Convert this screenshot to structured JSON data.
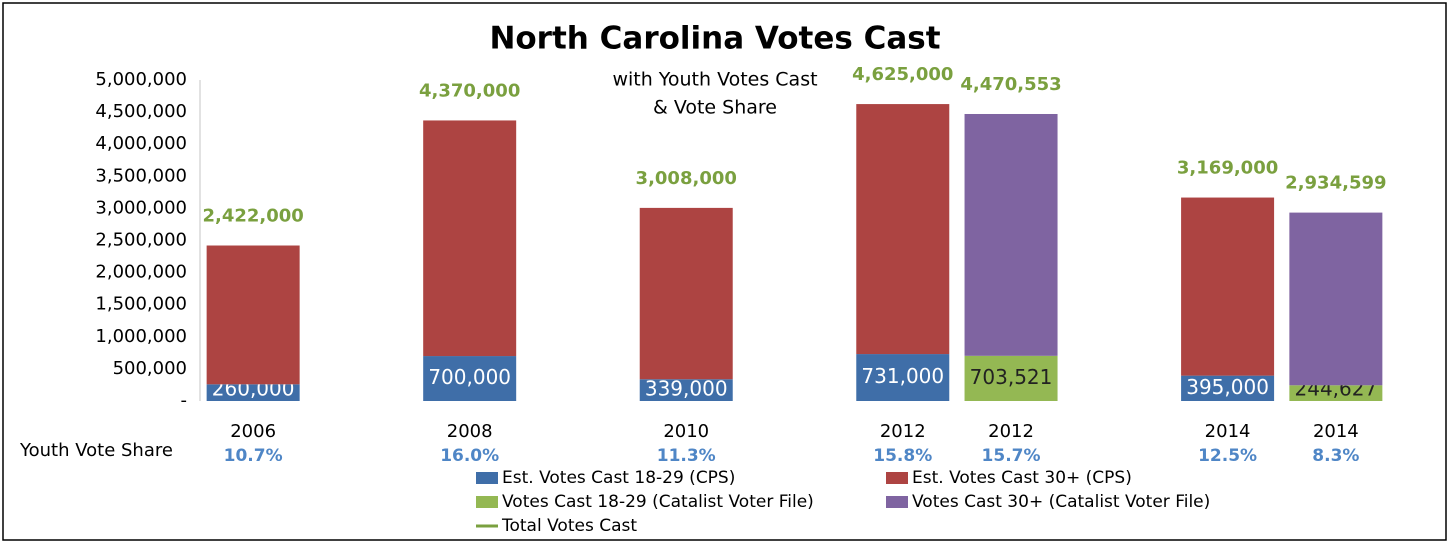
{
  "chart_data": {
    "type": "bar",
    "stacked": true,
    "title": "North Carolina Votes Cast",
    "subtitle": [
      "with Youth Votes Cast",
      "& Vote Share"
    ],
    "categories": [
      "2006",
      null,
      "2008",
      null,
      "2010",
      null,
      "2012",
      "2012",
      null,
      "2014",
      "2014"
    ],
    "series": [
      {
        "name": "Est. Votes Cast 18-29 (CPS)",
        "color": "#3f6ea8",
        "values": [
          260000,
          null,
          700000,
          null,
          339000,
          null,
          731000,
          null,
          null,
          395000,
          null
        ],
        "value_labels": [
          "260,000",
          null,
          "700,000",
          null,
          "339,000",
          null,
          "731,000",
          null,
          null,
          "395,000",
          null
        ]
      },
      {
        "name": "Est. Votes Cast 30+ (CPS)",
        "color": "#ad4442",
        "values": [
          2162000,
          null,
          3670000,
          null,
          2669000,
          null,
          3894000,
          null,
          null,
          2774000,
          null
        ]
      },
      {
        "name": "Votes Cast 18-29 (Catalist Voter File)",
        "color": "#94b853",
        "values": [
          null,
          null,
          null,
          null,
          null,
          null,
          null,
          703521,
          null,
          null,
          244627
        ],
        "value_labels": [
          null,
          null,
          null,
          null,
          null,
          null,
          null,
          "703,521",
          null,
          null,
          "244,627"
        ]
      },
      {
        "name": "Votes Cast 30+ (Catalist Voter File)",
        "color": "#7f64a1",
        "values": [
          null,
          null,
          null,
          null,
          null,
          null,
          null,
          3767032,
          null,
          null,
          2689972
        ]
      },
      {
        "name": "Total Votes Cast",
        "color": "#7aa03f",
        "type": "line",
        "values": [
          2422000,
          null,
          4370000,
          null,
          3008000,
          null,
          4625000,
          4470553,
          null,
          3169000,
          2934599
        ],
        "value_labels": [
          "2,422,000",
          null,
          "4,370,000",
          null,
          "3,008,000",
          null,
          "4,625,000",
          "4,470,553",
          null,
          "3,169,000",
          "2,934,599"
        ]
      }
    ],
    "youth_vote_share": {
      "label": "Youth Vote Share",
      "values": [
        10.7,
        null,
        16.0,
        null,
        11.3,
        null,
        15.8,
        15.7,
        null,
        12.5,
        8.3
      ],
      "value_labels": [
        "10.7%",
        null,
        "16.0%",
        null,
        "11.3%",
        null,
        "15.8%",
        "15.7%",
        null,
        "12.5%",
        "8.3%"
      ]
    },
    "ylim": [
      0,
      5000000
    ],
    "yticks": [
      {
        "value": 0,
        "label": "-"
      },
      {
        "value": 500000,
        "label": "500,000"
      },
      {
        "value": 1000000,
        "label": "1,000,000"
      },
      {
        "value": 1500000,
        "label": "1,500,000"
      },
      {
        "value": 2000000,
        "label": "2,000,000"
      },
      {
        "value": 2500000,
        "label": "2,500,000"
      },
      {
        "value": 3000000,
        "label": "3,000,000"
      },
      {
        "value": 3500000,
        "label": "3,500,000"
      },
      {
        "value": 4000000,
        "label": "4,000,000"
      },
      {
        "value": 4500000,
        "label": "4,500,000"
      },
      {
        "value": 5000000,
        "label": "5,000,000"
      }
    ],
    "grid": false,
    "legend": "bottom"
  }
}
